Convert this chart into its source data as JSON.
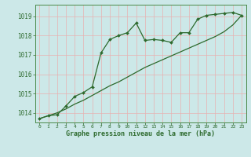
{
  "x": [
    0,
    1,
    2,
    3,
    4,
    5,
    6,
    7,
    8,
    9,
    10,
    11,
    12,
    13,
    14,
    15,
    16,
    17,
    18,
    19,
    20,
    21,
    22,
    23
  ],
  "y_actual": [
    1013.7,
    1013.85,
    1013.9,
    1014.35,
    1014.85,
    1015.05,
    1015.35,
    1017.1,
    1017.8,
    1018.0,
    1018.15,
    1018.65,
    1017.75,
    1017.8,
    1017.75,
    1017.65,
    1018.15,
    1018.15,
    1018.85,
    1019.05,
    1019.1,
    1019.15,
    1019.2,
    1019.05
  ],
  "y_trend": [
    1013.7,
    1013.85,
    1014.0,
    1014.2,
    1014.45,
    1014.65,
    1014.9,
    1015.15,
    1015.4,
    1015.6,
    1015.85,
    1016.1,
    1016.35,
    1016.55,
    1016.75,
    1016.95,
    1017.15,
    1017.35,
    1017.55,
    1017.75,
    1017.95,
    1018.2,
    1018.55,
    1019.05
  ],
  "line_color": "#2d6a2d",
  "bg_color": "#cce8e8",
  "grid_color": "#b0d8d8",
  "xlabel": "Graphe pression niveau de la mer (hPa)",
  "ylim": [
    1013.5,
    1019.6
  ],
  "xlim": [
    -0.5,
    23.5
  ],
  "yticks": [
    1014,
    1015,
    1016,
    1017,
    1018,
    1019
  ],
  "xticks": [
    0,
    1,
    2,
    3,
    4,
    5,
    6,
    7,
    8,
    9,
    10,
    11,
    12,
    13,
    14,
    15,
    16,
    17,
    18,
    19,
    20,
    21,
    22,
    23
  ]
}
